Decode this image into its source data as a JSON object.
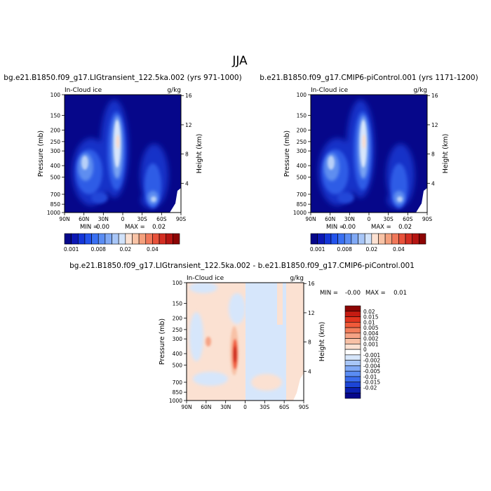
{
  "page_title": "JJA",
  "chart_data": [
    {
      "type": "heatmap",
      "title": "bg.e21.B1850.f09_g17.LIGtransient_122.5ka.002 (yrs 971-1000)",
      "left_string": "In-Cloud ice",
      "right_string": "g/kg",
      "ylabel": "Pressure (mb)",
      "y2label": "Height (km)",
      "x_ticks": [
        "90N",
        "60N",
        "30N",
        "0",
        "30S",
        "60S",
        "90S"
      ],
      "y_ticks": [
        "100",
        "150",
        "200",
        "250",
        "300",
        "400",
        "500",
        "700",
        "850",
        "1000"
      ],
      "y2_ticks": [
        "16",
        "12",
        "8",
        "4"
      ],
      "y_scale": "log",
      "stats": {
        "min_label": "MIN =",
        "min_value": "0.00",
        "max_label": "MAX =",
        "max_value": "0.02"
      },
      "colorbar": {
        "orientation": "horizontal",
        "tick_labels": [
          "0.001",
          "0.008",
          "0.02",
          "0.04"
        ],
        "colors": [
          "#06078a",
          "#0c18b4",
          "#1436d8",
          "#2353ec",
          "#3a70f2",
          "#5a8cf3",
          "#80a9f5",
          "#a8c6f7",
          "#d1e2fa",
          "#fbe1d2",
          "#f8c3a6",
          "#f4a07d",
          "#f0785a",
          "#e8523b",
          "#d42e22",
          "#b51512",
          "#8c0504"
        ]
      },
      "description_data": {
        "ice_maxima": [
          {
            "lat": 5,
            "pressure": 250,
            "value": 0.02
          },
          {
            "lat": 48,
            "pressure": 400,
            "value": 0.012
          },
          {
            "lat": -52,
            "pressure": 800,
            "value": 0.012
          }
        ]
      }
    },
    {
      "type": "heatmap",
      "title": "b.e21.B1850.f09_g17.CMIP6-piControl.001 (yrs 1171-1200)",
      "left_string": "In-Cloud ice",
      "right_string": "g/kg",
      "ylabel": "Pressure (mb)",
      "y2label": "Height (km)",
      "x_ticks": [
        "90N",
        "60N",
        "30N",
        "0",
        "30S",
        "60S",
        "90S"
      ],
      "y_ticks": [
        "100",
        "150",
        "200",
        "250",
        "300",
        "400",
        "500",
        "700",
        "850",
        "1000"
      ],
      "y2_ticks": [
        "16",
        "12",
        "8",
        "4"
      ],
      "y_scale": "log",
      "stats": {
        "min_label": "MIN =",
        "min_value": "0.00",
        "max_label": "MAX =",
        "max_value": "0.02"
      },
      "colorbar": {
        "orientation": "horizontal",
        "tick_labels": [
          "0.001",
          "0.008",
          "0.02",
          "0.04"
        ],
        "colors": [
          "#06078a",
          "#0c18b4",
          "#1436d8",
          "#2353ec",
          "#3a70f2",
          "#5a8cf3",
          "#80a9f5",
          "#a8c6f7",
          "#d1e2fa",
          "#fbe1d2",
          "#f8c3a6",
          "#f4a07d",
          "#f0785a",
          "#e8523b",
          "#d42e22",
          "#b51512",
          "#8c0504"
        ]
      }
    },
    {
      "type": "heatmap",
      "title": "bg.e21.B1850.f09_g17.LIGtransient_122.5ka.002 - b.e21.B1850.f09_g17.CMIP6-piControl.001",
      "left_string": "In-Cloud ice",
      "right_string": "g/kg",
      "ylabel": "Pressure (mb)",
      "y2label": "Height (km)",
      "x_ticks": [
        "90N",
        "60N",
        "30N",
        "0",
        "30S",
        "60S",
        "90S"
      ],
      "y_ticks": [
        "100",
        "150",
        "200",
        "250",
        "300",
        "400",
        "500",
        "700",
        "850",
        "1000"
      ],
      "y2_ticks": [
        "16",
        "12",
        "8",
        "4"
      ],
      "y_scale": "log",
      "stats": {
        "min_label": "MIN =",
        "min_value": "-0.00",
        "max_label": "MAX =",
        "max_value": "0.01"
      },
      "colorbar": {
        "orientation": "vertical",
        "tick_labels": [
          "0.02",
          "0.015",
          "0.01",
          "0.005",
          "0.004",
          "0.002",
          "0.001",
          "0",
          "-0.001",
          "-0.002",
          "-0.004",
          "-0.005",
          "-0.01",
          "-0.015",
          "-0.02"
        ],
        "colors": [
          "#8c0504",
          "#c51b12",
          "#e2351f",
          "#f05a3a",
          "#f27e5c",
          "#f6a385",
          "#f8c1a6",
          "#fbe1d2",
          "#ffffff",
          "#d6e6fb",
          "#a8c6f7",
          "#80a9f5",
          "#5a8cf3",
          "#3a6cec",
          "#1c45d6",
          "#0c20b0",
          "#06078a"
        ]
      }
    }
  ]
}
